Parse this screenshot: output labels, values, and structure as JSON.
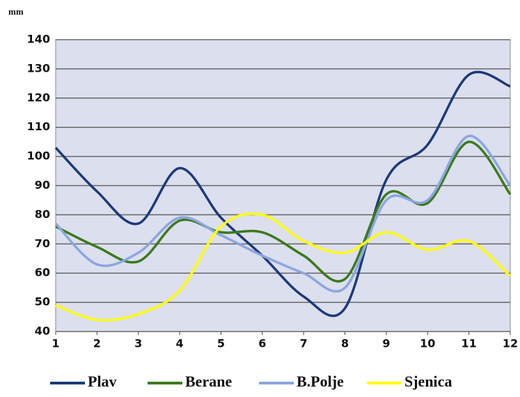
{
  "chart_data": {
    "type": "line",
    "y_label": "mm",
    "x": [
      1,
      2,
      3,
      4,
      5,
      6,
      7,
      8,
      9,
      10,
      11,
      12
    ],
    "xlim": [
      1,
      12
    ],
    "xticks": [
      1,
      2,
      3,
      4,
      5,
      6,
      7,
      8,
      9,
      10,
      11,
      12
    ],
    "ylim": [
      40,
      140
    ],
    "yticks": [
      40,
      50,
      60,
      70,
      80,
      90,
      100,
      110,
      120,
      130,
      140
    ],
    "grid": true,
    "smooth": true,
    "legend": "bottom",
    "series": [
      {
        "name": "Plav",
        "color": "#1c3a78",
        "values": [
          103,
          88,
          77,
          96,
          79,
          66,
          52,
          48,
          92,
          104,
          128,
          124
        ]
      },
      {
        "name": "Berane",
        "color": "#3b7a1c",
        "values": [
          76,
          69,
          64,
          78,
          74,
          74,
          66,
          58,
          87,
          84,
          105,
          87
        ]
      },
      {
        "name": "B.Polje",
        "color": "#8aa6e0",
        "values": [
          77,
          63,
          67,
          79,
          73,
          66,
          60,
          55,
          85,
          85,
          107,
          90
        ]
      },
      {
        "name": "Sjenica",
        "color": "#ffff00",
        "values": [
          49,
          44,
          46,
          54,
          76,
          80,
          71,
          67,
          74,
          68,
          71,
          59
        ]
      }
    ]
  }
}
